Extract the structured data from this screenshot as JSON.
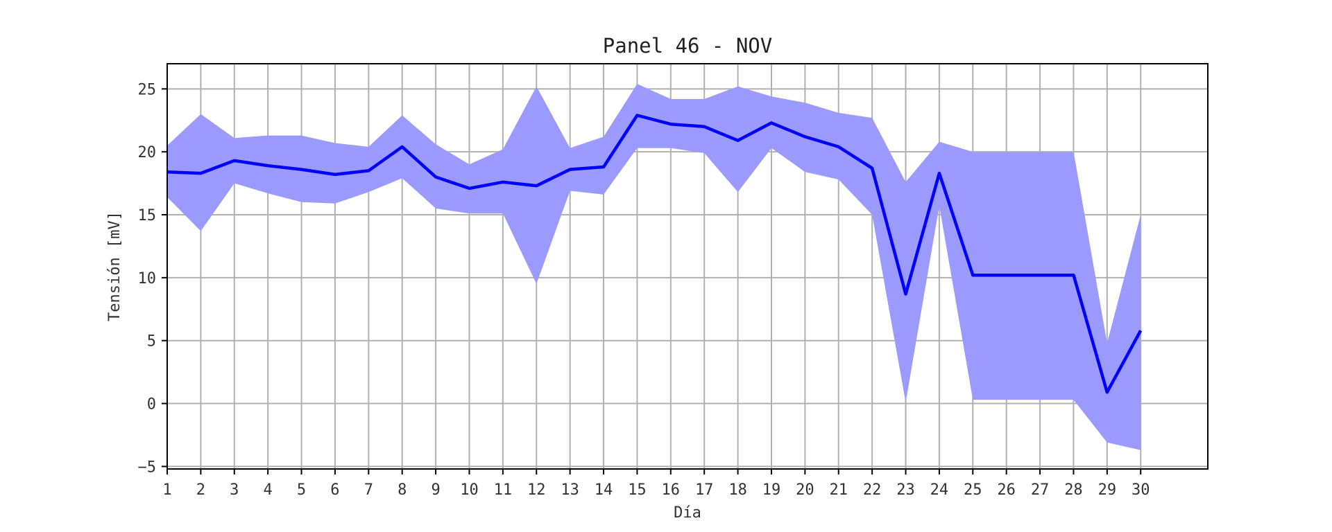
{
  "chart_data": {
    "type": "line",
    "title": "Panel 46 - NOV",
    "xlabel": "Día",
    "ylabel": "Tensión [mV]",
    "x": [
      1,
      2,
      3,
      4,
      5,
      6,
      7,
      8,
      9,
      10,
      11,
      12,
      13,
      14,
      15,
      16,
      17,
      18,
      19,
      20,
      21,
      22,
      23,
      24,
      25,
      26,
      27,
      28,
      29,
      30
    ],
    "x_tick_labels": [
      "1",
      "2",
      "3",
      "4",
      "5",
      "6",
      "7",
      "8",
      "9",
      "10",
      "11",
      "12",
      "13",
      "14",
      "15",
      "16",
      "17",
      "18",
      "19",
      "20",
      "21",
      "22",
      "23",
      "24",
      "25",
      "26",
      "27",
      "28",
      "29",
      "30"
    ],
    "y_ticks": [
      -5,
      0,
      5,
      10,
      15,
      20,
      25
    ],
    "y_tick_labels": [
      "−5",
      "0",
      "5",
      "10",
      "15",
      "20",
      "25"
    ],
    "xlim": [
      1,
      32
    ],
    "ylim": [
      -5.2,
      27
    ],
    "grid": true,
    "series": [
      {
        "values": [
          18.4,
          18.3,
          19.3,
          18.9,
          18.6,
          18.2,
          18.5,
          20.4,
          18.0,
          17.1,
          17.6,
          17.3,
          18.6,
          18.8,
          22.9,
          22.2,
          22.0,
          20.9,
          22.3,
          21.2,
          20.4,
          18.7,
          8.7,
          18.3,
          10.2,
          10.2,
          10.2,
          10.2,
          0.9,
          5.8
        ],
        "upper": [
          20.5,
          23.0,
          21.1,
          21.3,
          21.3,
          20.7,
          20.4,
          22.9,
          20.6,
          19.0,
          20.2,
          25.2,
          20.3,
          21.2,
          25.4,
          24.2,
          24.2,
          25.2,
          24.4,
          23.9,
          23.1,
          22.7,
          17.6,
          20.8,
          20.0,
          20.0,
          20.0,
          20.0,
          4.8,
          15.0
        ],
        "lower": [
          16.4,
          13.7,
          17.5,
          16.7,
          16.0,
          15.9,
          16.8,
          17.9,
          15.5,
          15.1,
          15.1,
          9.5,
          16.9,
          16.6,
          20.3,
          20.3,
          19.9,
          16.8,
          20.3,
          18.4,
          17.8,
          15.0,
          0.1,
          15.7,
          0.3,
          0.3,
          0.3,
          0.3,
          -3.1,
          -3.7
        ]
      }
    ],
    "colors": {
      "line": "#0000ff",
      "band": "#9b9bff",
      "grid": "#b0b0b0"
    }
  }
}
